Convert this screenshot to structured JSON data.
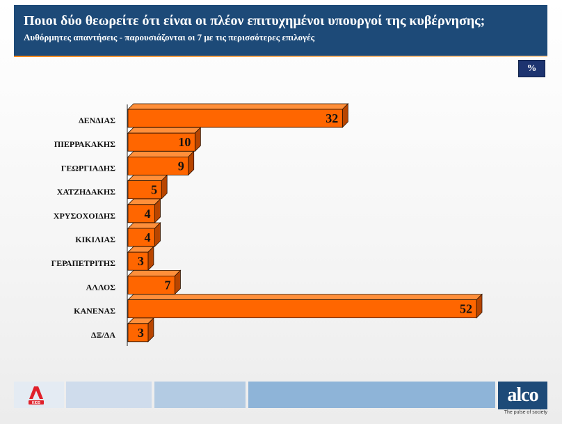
{
  "header": {
    "title": "Ποιοι δύο θεωρείτε ότι είναι οι πλέον επιτυχημένοι υπουργοί της κυβέρνησης;",
    "subtitle": "Αυθόρμητες απαντήσεις - παρουσιάζονται οι 7 με τις περισσότερες επιλογές"
  },
  "unit_badge": "%",
  "chart_data": {
    "type": "bar",
    "orientation": "horizontal",
    "title": "Ποιοι δύο θεωρείτε ότι είναι οι πλέον επιτυχημένοι υπουργοί της κυβέρνησης;",
    "subtitle": "Αυθόρμητες απαντήσεις - παρουσιάζονται οι 7 με τις περισσότερες επιλογές",
    "unit": "%",
    "categories": [
      "ΔΕΝΔΙΑΣ",
      "ΠΙΕΡΡΑΚΑΚΗΣ",
      "ΓΕΩΡΓΙΑΔΗΣ",
      "ΧΑΤΖΗΔΑΚΗΣ",
      "ΧΡΥΣΟΧΟΙΔΗΣ",
      "ΚΙΚΙΛΙΑΣ",
      "ΓΕΡΑΠΕΤΡΙΤΗΣ",
      "ΑΛΛΟΣ",
      "ΚΑΝΕΝΑΣ",
      "ΔΞ/ΔΑ"
    ],
    "values": [
      32,
      10,
      9,
      5,
      4,
      4,
      3,
      7,
      52,
      3
    ],
    "xlim": [
      0,
      52
    ],
    "grid": false,
    "legend": false,
    "bar_color": "#ff6600",
    "bar_side_color": "#b84500",
    "bar_top_color": "#ff8f3a"
  },
  "footer": {
    "brand": "alco",
    "tagline": "The pulse of society",
    "left_logo_text": "KIDS"
  }
}
